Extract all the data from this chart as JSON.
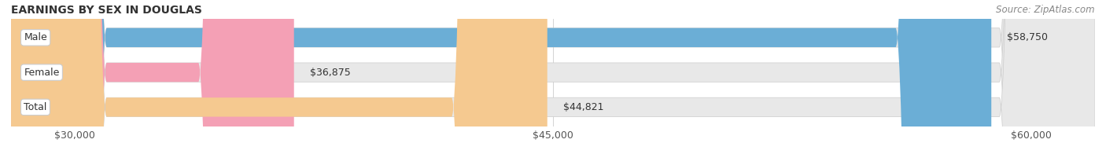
{
  "title": "EARNINGS BY SEX IN DOUGLAS",
  "source": "Source: ZipAtlas.com",
  "categories": [
    "Male",
    "Female",
    "Total"
  ],
  "values": [
    58750,
    36875,
    44821
  ],
  "bar_colors": [
    "#6baed6",
    "#f4a0b5",
    "#f5c990"
  ],
  "bar_bg_color": "#e8e8e8",
  "value_labels": [
    "$58,750",
    "$36,875",
    "$44,821"
  ],
  "x_min": 28000,
  "x_max": 62000,
  "x_ticks": [
    30000,
    45000,
    60000
  ],
  "x_tick_labels": [
    "$30,000",
    "$45,000",
    "$60,000"
  ],
  "label_bg_color": "#ffffff",
  "label_border_color": "#cccccc",
  "bar_height": 0.55,
  "title_fontsize": 10,
  "tick_fontsize": 9,
  "value_fontsize": 9,
  "category_fontsize": 9,
  "source_fontsize": 8.5
}
